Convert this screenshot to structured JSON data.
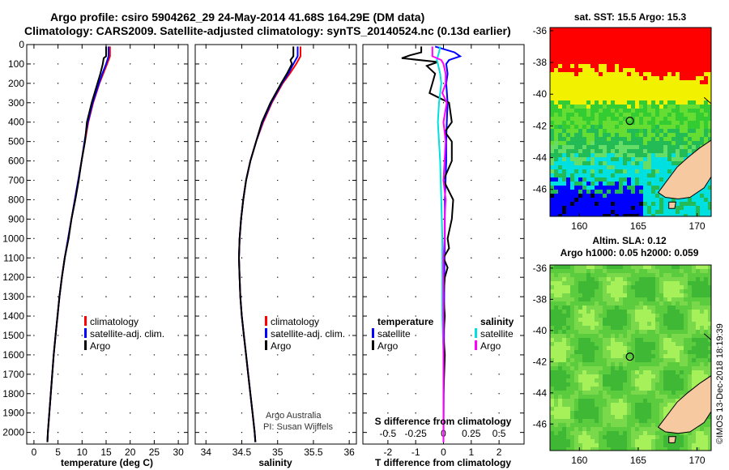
{
  "header": {
    "line1": "Argo profile: csiro 5904262_29 24-May-2014 41.68S 164.29E (DM data)",
    "line2": "Climatology: CARS2009. Satellite-adjusted climatology: synTS_20140524.nc (0.13d earlier)"
  },
  "colors": {
    "climatology": "#ff0000",
    "satellite": "#0000ff",
    "argo": "#000000",
    "s_satellite": "#00e0e0",
    "s_argo": "#ff00ff"
  },
  "chart_data": [
    {
      "type": "line",
      "xlabel": "temperature (deg C)",
      "xlim": [
        -1.5,
        32
      ],
      "xticks": [
        "0",
        "5",
        "10",
        "15",
        "20",
        "25",
        "30"
      ],
      "ylim": [
        2060,
        0
      ],
      "yticks": [
        "0",
        "100",
        "200",
        "300",
        "400",
        "500",
        "600",
        "700",
        "800",
        "900",
        "1000",
        "1100",
        "1200",
        "1300",
        "1400",
        "1500",
        "1600",
        "1700",
        "1800",
        "1900",
        "2000"
      ],
      "legend": [
        "climatology",
        "satellite-adj. clim.",
        "Argo"
      ],
      "series": [
        {
          "name": "climatology",
          "y": [
            10,
            60,
            100,
            150,
            200,
            300,
            400,
            500,
            600,
            700,
            800,
            900,
            1000,
            1100,
            1200,
            1300,
            1400,
            1500,
            1600,
            1700,
            1800,
            1900,
            2000,
            2050
          ],
          "values": [
            15.8,
            15.8,
            15.2,
            14.4,
            13.6,
            12.3,
            11.3,
            10.6,
            9.9,
            9.2,
            8.5,
            7.8,
            7.1,
            6.4,
            5.8,
            5.3,
            4.9,
            4.5,
            4.1,
            3.8,
            3.5,
            3.2,
            2.9,
            2.8
          ]
        },
        {
          "name": "satellite-adj. clim.",
          "y": [
            10,
            60,
            100,
            150,
            200,
            300,
            400,
            500,
            600,
            700,
            800,
            900,
            1000,
            1100,
            1200,
            1300,
            1400,
            1500,
            1600,
            1700,
            1800,
            1900,
            2000,
            2050
          ],
          "values": [
            15.5,
            15.5,
            15.0,
            14.2,
            13.5,
            12.2,
            11.2,
            10.5,
            9.9,
            9.2,
            8.5,
            7.8,
            7.1,
            6.4,
            5.8,
            5.3,
            4.9,
            4.5,
            4.1,
            3.8,
            3.5,
            3.2,
            2.9,
            2.8
          ]
        },
        {
          "name": "Argo",
          "y": [
            10,
            60,
            70,
            100,
            150,
            200,
            300,
            400,
            500,
            600,
            700,
            800,
            900,
            1000,
            1100,
            1200,
            1300,
            1400,
            1500,
            1600,
            1700,
            1800,
            1900,
            2000,
            2050
          ],
          "values": [
            15.0,
            15.0,
            14.5,
            14.3,
            13.8,
            13.2,
            12.0,
            11.0,
            10.6,
            9.9,
            9.3,
            8.6,
            7.8,
            7.2,
            6.4,
            5.8,
            5.3,
            4.9,
            4.5,
            4.1,
            3.8,
            3.5,
            3.2,
            2.9,
            2.8
          ]
        }
      ]
    },
    {
      "type": "line",
      "xlabel": "salinity",
      "xlim": [
        33.85,
        36.1
      ],
      "xticks": [
        "34",
        "34.5",
        "35",
        "35.5",
        "36"
      ],
      "ylim": [
        2060,
        0
      ],
      "legend": [
        "climatology",
        "satellite-adj. clim.",
        "Argo"
      ],
      "annotation": [
        "Argo Australia",
        "PI: Susan Wijffels"
      ],
      "series": [
        {
          "name": "climatology",
          "y": [
            10,
            60,
            100,
            150,
            200,
            300,
            400,
            500,
            600,
            700,
            800,
            900,
            1000,
            1100,
            1200,
            1300,
            1400,
            1500,
            1600,
            1700,
            1800,
            1900,
            2000,
            2050
          ],
          "values": [
            35.32,
            35.32,
            35.26,
            35.17,
            35.07,
            34.92,
            34.8,
            34.7,
            34.62,
            34.56,
            34.52,
            34.49,
            34.47,
            34.46,
            34.47,
            34.48,
            34.5,
            34.53,
            34.56,
            34.59,
            34.62,
            34.65,
            34.68,
            34.69
          ]
        },
        {
          "name": "satellite-adj. clim.",
          "y": [
            10,
            60,
            100,
            150,
            200,
            300,
            400,
            500,
            600,
            700,
            800,
            900,
            1000,
            1100,
            1200,
            1300,
            1400,
            1500,
            1600,
            1700,
            1800,
            1900,
            2000,
            2050
          ],
          "values": [
            35.28,
            35.28,
            35.22,
            35.15,
            35.06,
            34.91,
            34.79,
            34.7,
            34.62,
            34.56,
            34.52,
            34.49,
            34.47,
            34.46,
            34.47,
            34.48,
            34.5,
            34.53,
            34.56,
            34.59,
            34.62,
            34.65,
            34.68,
            34.69
          ]
        },
        {
          "name": "Argo",
          "y": [
            10,
            60,
            80,
            100,
            150,
            200,
            300,
            400,
            500,
            600,
            700,
            800,
            900,
            1000,
            1100,
            1200,
            1300,
            1400,
            1500,
            1600,
            1700,
            1800,
            1900,
            2000,
            2050
          ],
          "values": [
            35.22,
            35.22,
            35.18,
            35.2,
            35.13,
            35.05,
            34.9,
            34.78,
            34.7,
            34.62,
            34.56,
            34.52,
            34.49,
            34.47,
            34.46,
            34.47,
            34.48,
            34.5,
            34.53,
            34.56,
            34.59,
            34.62,
            34.65,
            34.68,
            34.69
          ]
        }
      ]
    },
    {
      "type": "line",
      "xlabel": "T difference from climatology",
      "xlim": [
        -2.9,
        2.9
      ],
      "xticks": [
        "-2",
        "-1",
        "0",
        "1",
        "2"
      ],
      "secondary_xlabel": "S difference from climatology",
      "secondary_xlim": [
        -0.725,
        0.725
      ],
      "secondary_xticks": [
        "-0.5",
        "-0.25",
        "0",
        "0.25",
        "0.5"
      ],
      "ylim": [
        2060,
        0
      ],
      "legend_temperature": [
        "temperature",
        "satellite",
        "Argo"
      ],
      "legend_salinity": [
        "salinity",
        "satellite",
        "Argo"
      ],
      "series": [
        {
          "name": "T satellite",
          "y": [
            10,
            40,
            60,
            80,
            100,
            150,
            200,
            300,
            400,
            500,
            600,
            800,
            1000,
            1200,
            1500,
            1800,
            2050
          ],
          "values": [
            -0.3,
            0.4,
            0.6,
            0.2,
            0.1,
            0.15,
            0.1,
            0.15,
            0.12,
            0.1,
            0.1,
            0.05,
            0.05,
            0.03,
            0.02,
            0.01,
            0.0
          ]
        },
        {
          "name": "T Argo",
          "y": [
            10,
            40,
            55,
            70,
            90,
            110,
            150,
            200,
            250,
            300,
            400,
            450,
            500,
            600,
            700,
            800,
            900,
            1000,
            1050,
            1100,
            1150,
            1200,
            1300,
            1400,
            1500,
            1600,
            1800,
            2000,
            2050
          ],
          "values": [
            -0.8,
            -0.8,
            -1.2,
            -1.5,
            -0.2,
            -0.6,
            -0.3,
            -0.4,
            -0.5,
            0.2,
            0.3,
            0.05,
            0.3,
            0.3,
            0.0,
            0.35,
            0.3,
            0.15,
            0.2,
            0.0,
            0.15,
            0.05,
            0.0,
            0.05,
            0.0,
            0.05,
            0.0,
            0.0,
            0.0
          ]
        },
        {
          "name": "S satellite",
          "y": [
            10,
            40,
            60,
            80,
            100,
            150,
            200,
            300,
            400,
            500,
            600,
            800,
            1000,
            1200,
            1400,
            1600,
            1800,
            2050
          ],
          "values": [
            -0.03,
            -0.04,
            -0.05,
            -0.06,
            -0.05,
            -0.03,
            -0.02,
            -0.04,
            -0.05,
            -0.04,
            -0.03,
            -0.02,
            -0.01,
            -0.01,
            -0.01,
            0.0,
            0.0,
            0.0
          ]
        },
        {
          "name": "S Argo",
          "y": [
            10,
            40,
            60,
            80,
            100,
            150,
            200,
            250,
            300,
            400,
            500,
            600,
            700,
            800,
            900,
            1000,
            1100,
            1200,
            1400,
            1600,
            1800,
            2050
          ],
          "values": [
            -0.1,
            -0.1,
            -0.1,
            -0.02,
            0.0,
            0.02,
            0.02,
            -0.01,
            0.03,
            0.0,
            0.02,
            0.01,
            0.0,
            0.02,
            0.01,
            0.01,
            0.0,
            0.0,
            0.0,
            0.0,
            0.0,
            0.0
          ]
        }
      ]
    },
    {
      "type": "heatmap",
      "title": "sat. SST: 15.5 Argo: 15.3",
      "xlim": [
        157.5,
        171.2
      ],
      "ylim": [
        -47.7,
        -35.8
      ],
      "xticks": [
        "160",
        "165",
        "170"
      ],
      "yticks": [
        "-36",
        "-38",
        "-40",
        "-42",
        "-44",
        "-46"
      ],
      "marker": {
        "lon": 164.29,
        "lat": -41.68
      }
    },
    {
      "type": "heatmap",
      "title": "Altim. SLA: 0.12",
      "subtitle": "Argo h1000: 0.05 h2000: 0.059",
      "xlim": [
        157.5,
        171.2
      ],
      "ylim": [
        -47.7,
        -35.8
      ],
      "xticks": [
        "160",
        "165",
        "170"
      ],
      "yticks": [
        "-36",
        "-38",
        "-40",
        "-42",
        "-44",
        "-46"
      ],
      "marker": {
        "lon": 164.29,
        "lat": -41.68
      }
    }
  ],
  "watermark": "©IMOS 13-Dec-2018 18:19:39"
}
